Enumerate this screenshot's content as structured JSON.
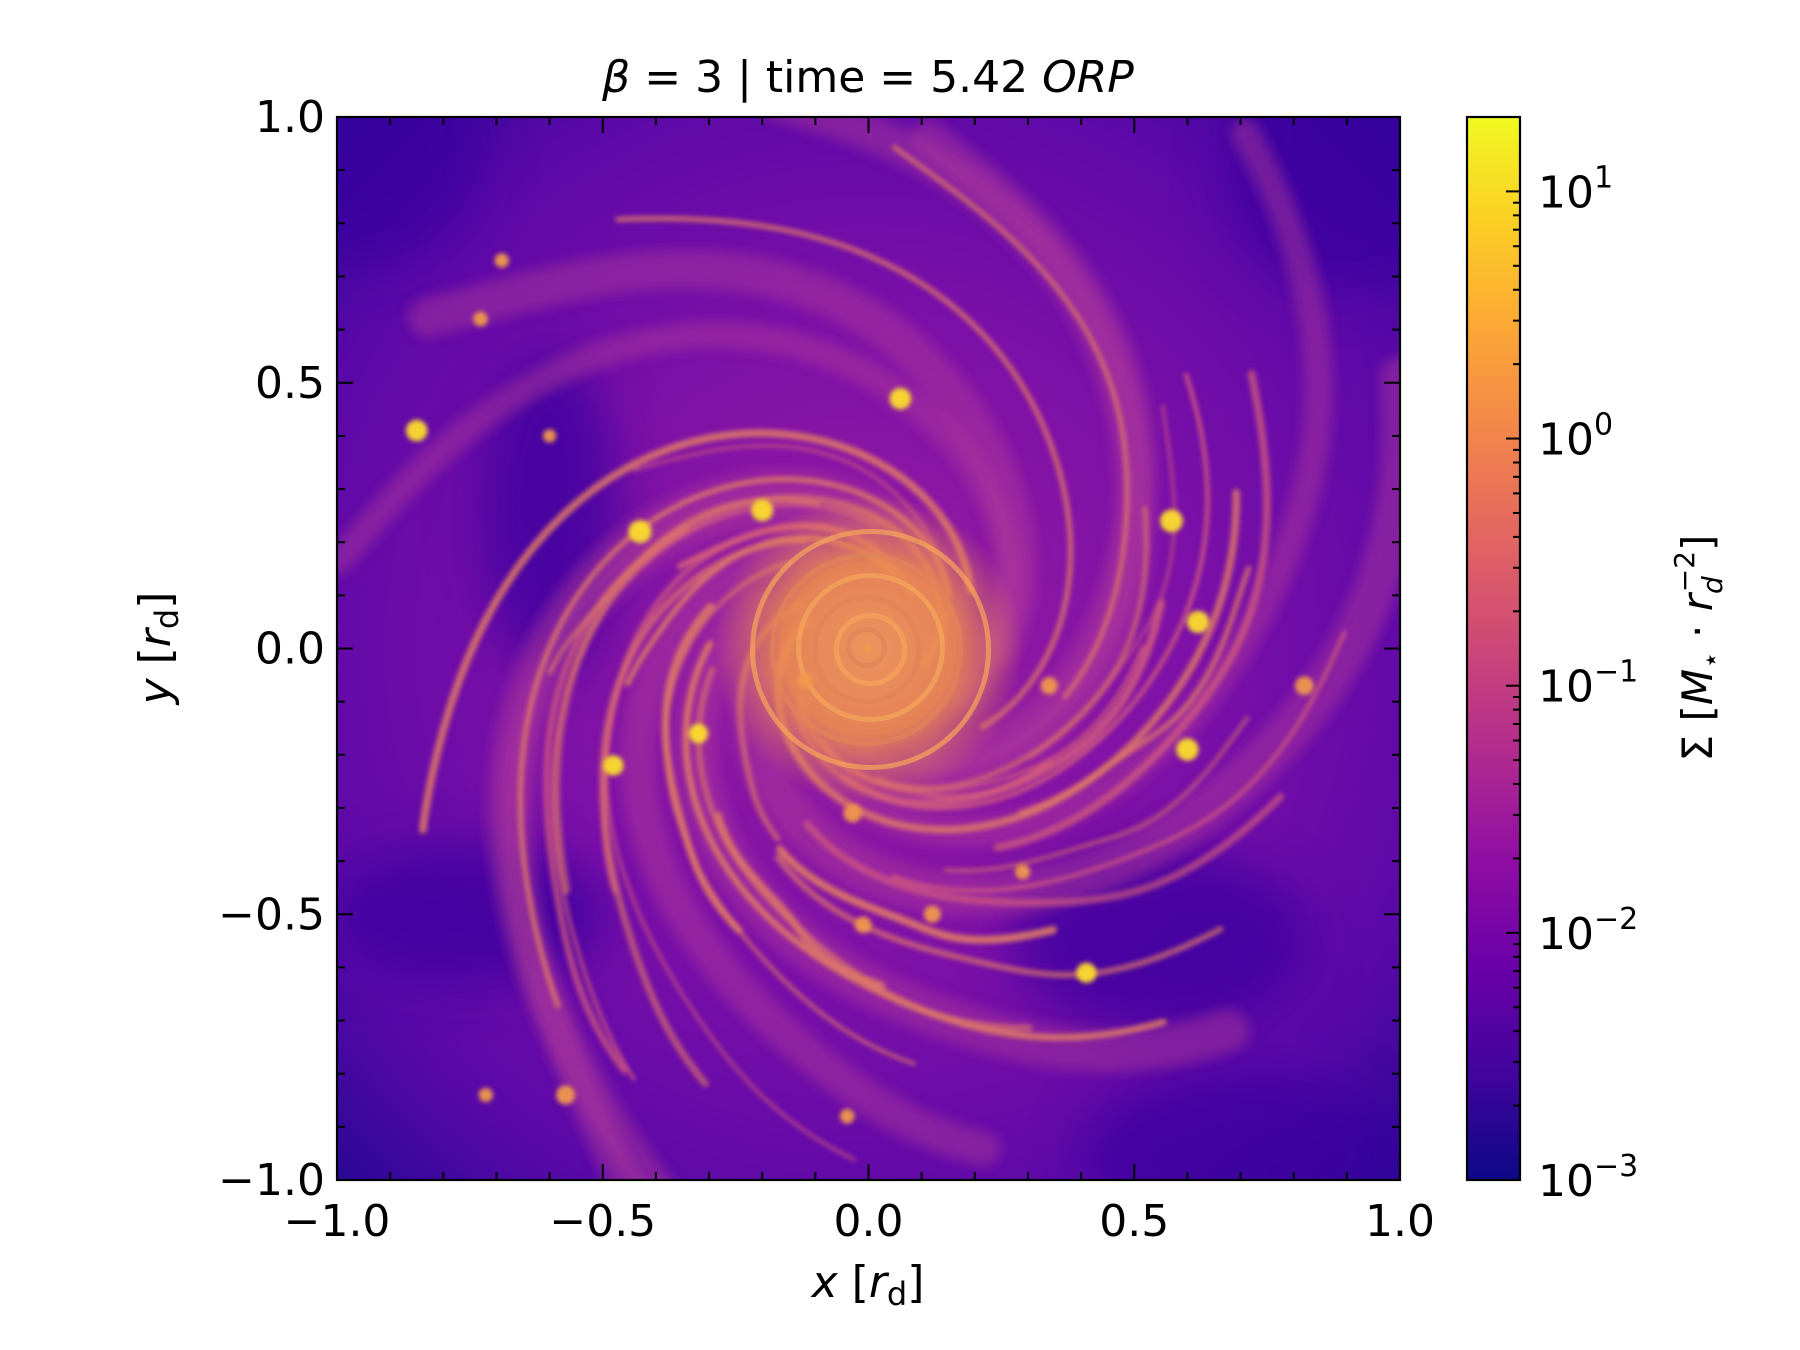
{
  "chart_data": {
    "type": "heatmap",
    "title": {
      "symbol": "β",
      "value_text": "= 3 | time = 5.42 ",
      "unit_italic": "ORP"
    },
    "xlabel": {
      "var": "x",
      "open": "[",
      "unit_main": "r",
      "unit_sub": "d",
      "close": "]"
    },
    "ylabel": {
      "var": "y",
      "open": "[",
      "unit_main": "r",
      "unit_sub": "d",
      "close": "]"
    },
    "xlim": [
      -1.0,
      1.0
    ],
    "ylim": [
      -1.0,
      1.0
    ],
    "xticks": [
      -1.0,
      -0.5,
      0.0,
      0.5,
      1.0
    ],
    "yticks": [
      -1.0,
      -0.5,
      0.0,
      0.5,
      1.0
    ],
    "xtick_labels": [
      "−1.0",
      "−0.5",
      "0.0",
      "0.5",
      "1.0"
    ],
    "ytick_labels": [
      "−1.0",
      "−0.5",
      "0.0",
      "0.5",
      "1.0"
    ],
    "grid": false,
    "colormap": "plasma",
    "colorbar": {
      "scale": "log",
      "range": [
        0.001,
        20
      ],
      "ticks": [
        {
          "value": 0.001,
          "base": "10",
          "exp": "−3"
        },
        {
          "value": 0.01,
          "base": "10",
          "exp": "−2"
        },
        {
          "value": 0.1,
          "base": "10",
          "exp": "−1"
        },
        {
          "value": 1,
          "base": "10",
          "exp": "0"
        },
        {
          "value": 10,
          "base": "10",
          "exp": "1"
        }
      ],
      "label": {
        "sym": "Σ",
        "open": "[",
        "m": "M",
        "m_sub": "⋆",
        "dot": "·",
        "r": "r",
        "r_sub": "d",
        "r_sup": "−2",
        "close": "]"
      }
    },
    "colors": {
      "background": "#7a10a6",
      "dense": "#f0984c",
      "peak": "#fcdc2a",
      "void": "#3a08a0"
    }
  }
}
